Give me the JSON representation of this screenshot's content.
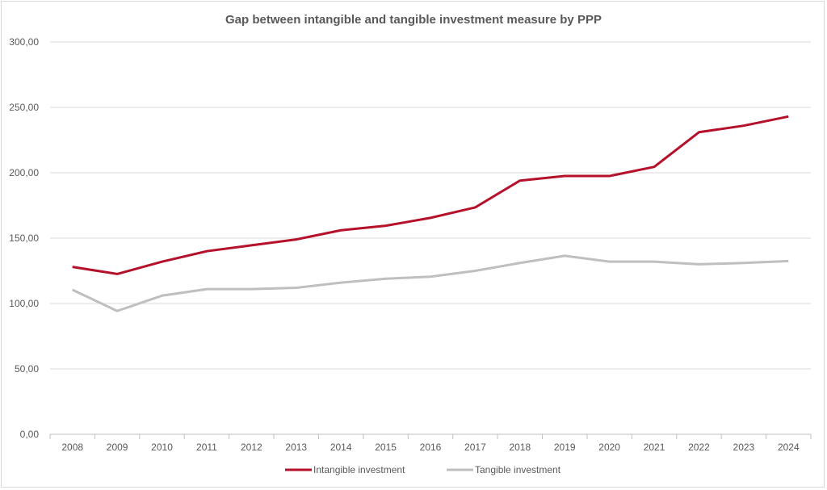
{
  "chart_data": {
    "type": "line",
    "title": "Gap between intangible and tangible investment measure by PPP",
    "xlabel": "",
    "ylabel": "",
    "categories": [
      "2008",
      "2009",
      "2010",
      "2011",
      "2012",
      "2013",
      "2014",
      "2015",
      "2016",
      "2017",
      "2018",
      "2019",
      "2020",
      "2021",
      "2022",
      "2023",
      "2024"
    ],
    "ylim": [
      0,
      300
    ],
    "yticks": [
      "0,00",
      "50,00",
      "100,00",
      "150,00",
      "200,00",
      "250,00",
      "300,00"
    ],
    "grid": true,
    "legend_position": "bottom",
    "series": [
      {
        "name": "Intangible investment",
        "color": "#b5112b",
        "values": [
          128,
          122.6,
          132,
          140,
          144.5,
          149,
          156,
          159.5,
          165.5,
          173.5,
          194,
          197.5,
          197.5,
          204.5,
          231,
          236,
          243
        ]
      },
      {
        "name": "Tangible investment",
        "color": "#bfbfbf",
        "values": [
          110.5,
          94.3,
          106,
          111,
          111,
          112,
          116,
          119,
          120.5,
          125,
          131,
          136.5,
          132,
          132,
          130,
          131,
          132.5
        ]
      }
    ]
  }
}
